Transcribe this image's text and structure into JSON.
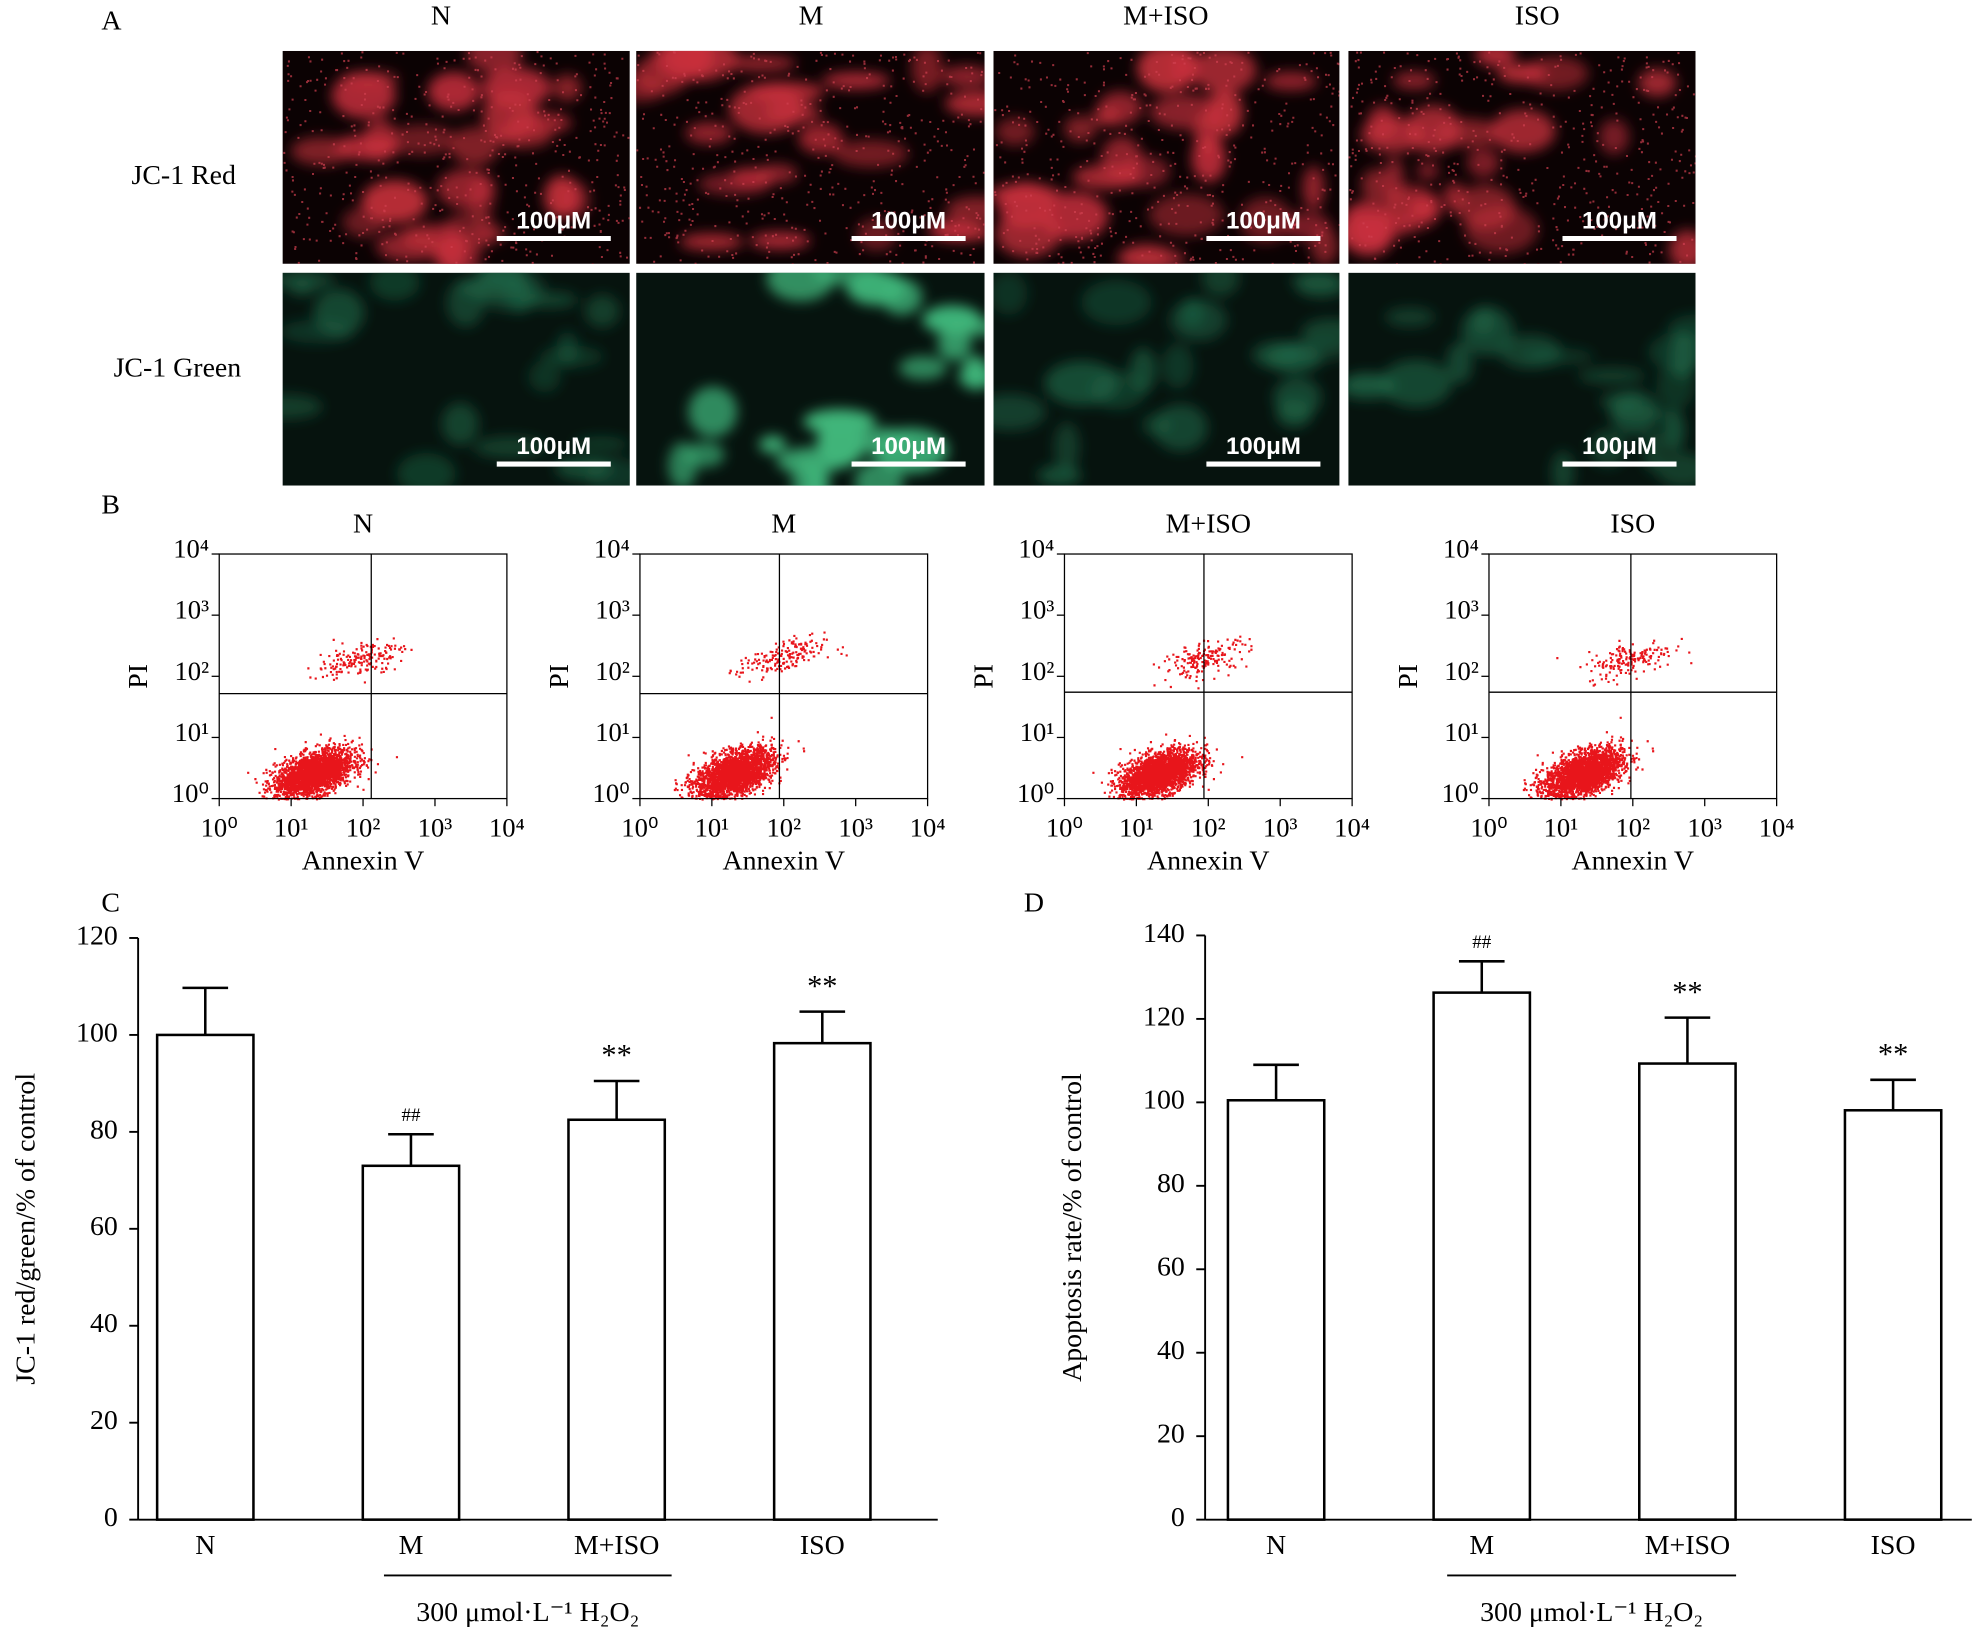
{
  "panel_labels": [
    "A",
    "B",
    "C",
    "D"
  ],
  "micrographs": {
    "columns": [
      "N",
      "M",
      "M+ISO",
      "ISO"
    ],
    "rows": [
      "JC-1 Red",
      "JC-1 Green"
    ],
    "scale_bar": "100μM"
  },
  "chart_data": [
    {
      "type": "scatter",
      "title": "N",
      "xlabel": "Annexin V",
      "ylabel": "PI",
      "log_scale": true,
      "xlim": [
        1,
        10000
      ],
      "ylim": [
        1,
        10000
      ],
      "xticks": [
        {
          "value": 1,
          "label": "10⁰"
        },
        {
          "value": 10,
          "label": "10¹"
        },
        {
          "value": 100,
          "label": "10²"
        },
        {
          "value": 1000,
          "label": "10³"
        },
        {
          "value": 10000,
          "label": "10⁴"
        }
      ],
      "yticks": [
        {
          "value": 1,
          "label": "10⁰"
        },
        {
          "value": 10,
          "label": "10¹"
        },
        {
          "value": 100,
          "label": "10²"
        },
        {
          "value": 1000,
          "label": "10³"
        },
        {
          "value": 10000,
          "label": "10⁴"
        }
      ],
      "gate_x": 130,
      "gate_y": 52,
      "color": "#e8151b"
    },
    {
      "type": "scatter",
      "title": "M",
      "xlabel": "Annexin V",
      "ylabel": "PI",
      "log_scale": true,
      "xlim": [
        1,
        10000
      ],
      "ylim": [
        1,
        10000
      ],
      "xticks": [
        {
          "value": 1,
          "label": "10⁰"
        },
        {
          "value": 10,
          "label": "10¹"
        },
        {
          "value": 100,
          "label": "10²"
        },
        {
          "value": 1000,
          "label": "10³"
        },
        {
          "value": 10000,
          "label": "10⁴"
        }
      ],
      "yticks": [
        {
          "value": 1,
          "label": "10⁰"
        },
        {
          "value": 10,
          "label": "10¹"
        },
        {
          "value": 100,
          "label": "10²"
        },
        {
          "value": 1000,
          "label": "10³"
        },
        {
          "value": 10000,
          "label": "10⁴"
        }
      ],
      "gate_x": 87,
      "gate_y": 52,
      "color": "#e8151b"
    },
    {
      "type": "scatter",
      "title": "M+ISO",
      "xlabel": "Annexin V",
      "ylabel": "PI",
      "log_scale": true,
      "xlim": [
        1,
        10000
      ],
      "ylim": [
        1,
        10000
      ],
      "xticks": [
        {
          "value": 1,
          "label": "10⁰"
        },
        {
          "value": 10,
          "label": "10¹"
        },
        {
          "value": 100,
          "label": "10²"
        },
        {
          "value": 1000,
          "label": "10³"
        },
        {
          "value": 10000,
          "label": "10⁴"
        }
      ],
      "yticks": [
        {
          "value": 1,
          "label": "10⁰"
        },
        {
          "value": 10,
          "label": "10¹"
        },
        {
          "value": 100,
          "label": "10²"
        },
        {
          "value": 1000,
          "label": "10³"
        },
        {
          "value": 10000,
          "label": "10⁴"
        }
      ],
      "gate_x": 87,
      "gate_y": 55,
      "color": "#e8151b"
    },
    {
      "type": "scatter",
      "title": "ISO",
      "xlabel": "Annexin V",
      "ylabel": "PI",
      "log_scale": true,
      "xlim": [
        1,
        10000
      ],
      "ylim": [
        1,
        10000
      ],
      "xticks": [
        {
          "value": 1,
          "label": "10⁰"
        },
        {
          "value": 10,
          "label": "10¹"
        },
        {
          "value": 100,
          "label": "10²"
        },
        {
          "value": 1000,
          "label": "10³"
        },
        {
          "value": 10000,
          "label": "10⁴"
        }
      ],
      "yticks": [
        {
          "value": 1,
          "label": "10⁰"
        },
        {
          "value": 10,
          "label": "10¹"
        },
        {
          "value": 100,
          "label": "10²"
        },
        {
          "value": 1000,
          "label": "10³"
        },
        {
          "value": 10000,
          "label": "10⁴"
        }
      ],
      "gate_x": 94,
      "gate_y": 55,
      "color": "#e8151b"
    },
    {
      "type": "bar",
      "ylabel": "JC-1 red/green/% of control",
      "categories": [
        "N",
        "M",
        "M+ISO",
        "ISO"
      ],
      "values": [
        100,
        73,
        82.5,
        98.3
      ],
      "errors": [
        9.7,
        6.5,
        8,
        6.5
      ],
      "annotations": [
        null,
        "##",
        "**",
        "**"
      ],
      "group_label": "300 μmol·L⁻¹ H₂O₂",
      "ylim": [
        0,
        120
      ],
      "yticks": [
        0,
        20,
        40,
        60,
        80,
        100,
        120
      ],
      "color": "#ffffff"
    },
    {
      "type": "bar",
      "ylabel": "Apoptosis rate/% of control",
      "categories": [
        "N",
        "M",
        "M+ISO",
        "ISO"
      ],
      "values": [
        100.5,
        126.3,
        109.3,
        98.1
      ],
      "errors": [
        8.5,
        7.5,
        11,
        7.3
      ],
      "annotations": [
        null,
        "##",
        "**",
        "**"
      ],
      "group_label": "300 μmol·L⁻¹ H₂O₂",
      "ylim": [
        0,
        140
      ],
      "yticks": [
        0,
        20,
        40,
        60,
        80,
        100,
        120,
        140
      ],
      "color": "#ffffff"
    }
  ]
}
